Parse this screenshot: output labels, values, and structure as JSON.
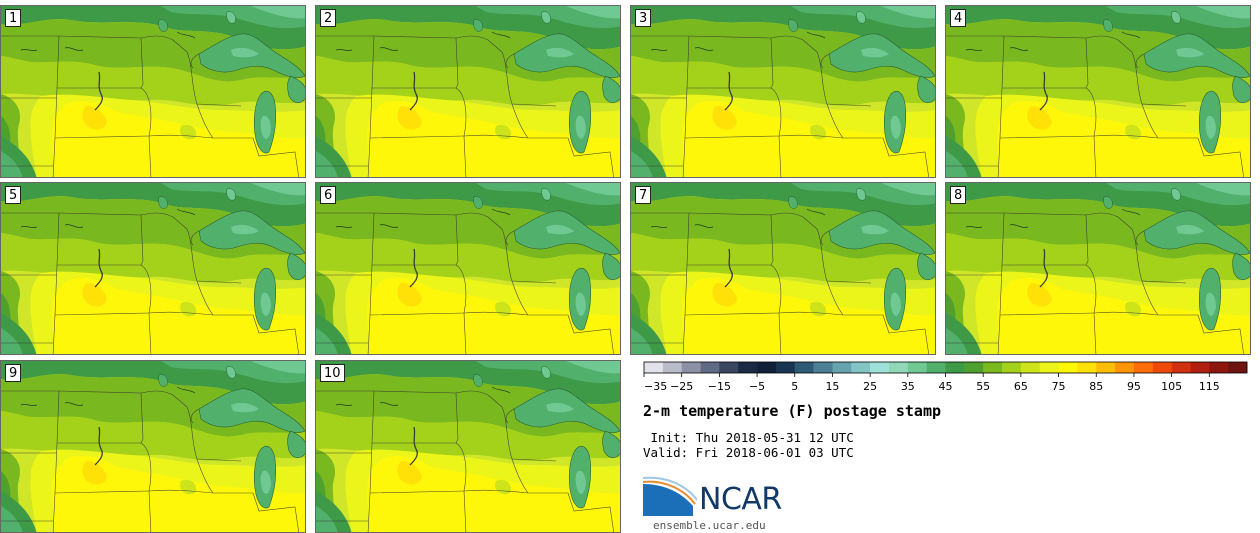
{
  "panels": [
    {
      "label": "1"
    },
    {
      "label": "2"
    },
    {
      "label": "3"
    },
    {
      "label": "4"
    },
    {
      "label": "5"
    },
    {
      "label": "6"
    },
    {
      "label": "7"
    },
    {
      "label": "8"
    },
    {
      "label": "9"
    },
    {
      "label": "10"
    }
  ],
  "colorbar": {
    "tick_labels": [
      "−35",
      "−25",
      "−15",
      "−5",
      "5",
      "15",
      "25",
      "35",
      "45",
      "55",
      "65",
      "75",
      "85",
      "95",
      "105",
      "115"
    ],
    "colors": [
      "#e2e2ea",
      "#b9bccb",
      "#8c91a6",
      "#616a84",
      "#3a4660",
      "#1b2a44",
      "#0f2038",
      "#183652",
      "#2f5a75",
      "#4a7f94",
      "#67a3ae",
      "#83c5c5",
      "#9de2d8",
      "#8fd9b8",
      "#70c893",
      "#52b06d",
      "#3f9a48",
      "#4ea12f",
      "#7ab81f",
      "#a4d11a",
      "#cde41b",
      "#ecf51a",
      "#fff70a",
      "#ffe007",
      "#ffbd06",
      "#ff9506",
      "#ff6d08",
      "#f04a0b",
      "#d2300f",
      "#b12011",
      "#8d170f",
      "#6d1310"
    ]
  },
  "title": "2-m temperature (F) postage stamp",
  "init": " Init: Thu 2018-05-31 12 UTC",
  "valid": "Valid: Fri 2018-06-01 03 UTC",
  "logo": {
    "name": "NCAR",
    "url": "ensemble.ucar.edu"
  }
}
